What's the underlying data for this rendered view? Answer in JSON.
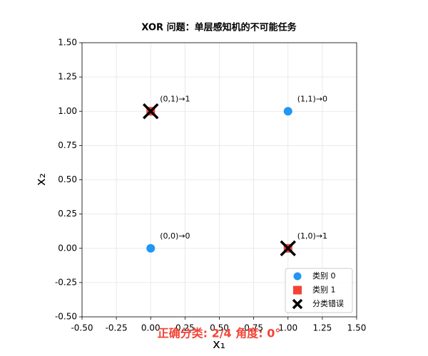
{
  "chart_data": {
    "type": "scatter",
    "title": "XOR 问题：单层感知机的不可能任务",
    "xlabel": "x₁",
    "ylabel": "x₂",
    "xlim": [
      -0.5,
      1.5
    ],
    "ylim": [
      -0.5,
      1.5
    ],
    "xticks": [
      {
        "value": -0.5,
        "label": "-0.50"
      },
      {
        "value": -0.25,
        "label": "-0.25"
      },
      {
        "value": 0,
        "label": "0.00"
      },
      {
        "value": 0.25,
        "label": "0.25"
      },
      {
        "value": 0.5,
        "label": "0.50"
      },
      {
        "value": 0.75,
        "label": "0.75"
      },
      {
        "value": 1,
        "label": "1.00"
      },
      {
        "value": 1.25,
        "label": "1.25"
      },
      {
        "value": 1.5,
        "label": "1.50"
      }
    ],
    "yticks": [
      {
        "value": -0.5,
        "label": "-0.50"
      },
      {
        "value": -0.25,
        "label": "-0.25"
      },
      {
        "value": 0,
        "label": "0.00"
      },
      {
        "value": 0.25,
        "label": "0.25"
      },
      {
        "value": 0.5,
        "label": "0.50"
      },
      {
        "value": 0.75,
        "label": "0.75"
      },
      {
        "value": 1,
        "label": "1.00"
      },
      {
        "value": 1.25,
        "label": "1.25"
      },
      {
        "value": 1.5,
        "label": "1.50"
      }
    ],
    "grid": true,
    "legend": "lower right",
    "series": [
      {
        "name": "类别 0",
        "color": "#2196f3",
        "marker": "circle",
        "x": [
          0,
          1
        ],
        "y": [
          0,
          1
        ]
      },
      {
        "name": "类别 1",
        "color": "#f44336",
        "marker": "square",
        "x": [
          0,
          1
        ],
        "y": [
          1,
          0
        ]
      },
      {
        "name": "分类错误",
        "color": "#000000",
        "marker": "x",
        "x": [
          0,
          1
        ],
        "y": [
          1,
          0
        ]
      }
    ],
    "annotations": [
      {
        "text": "(0,0)→0",
        "x": 0,
        "y": 0
      },
      {
        "text": "(0,1)→1",
        "x": 0,
        "y": 1
      },
      {
        "text": "(1,0)→1",
        "x": 1,
        "y": 0
      },
      {
        "text": "(1,1)→0",
        "x": 1,
        "y": 1
      }
    ],
    "footer": {
      "text": "正确分类: 2/4   角度: 0°",
      "color": "#f44336"
    }
  }
}
